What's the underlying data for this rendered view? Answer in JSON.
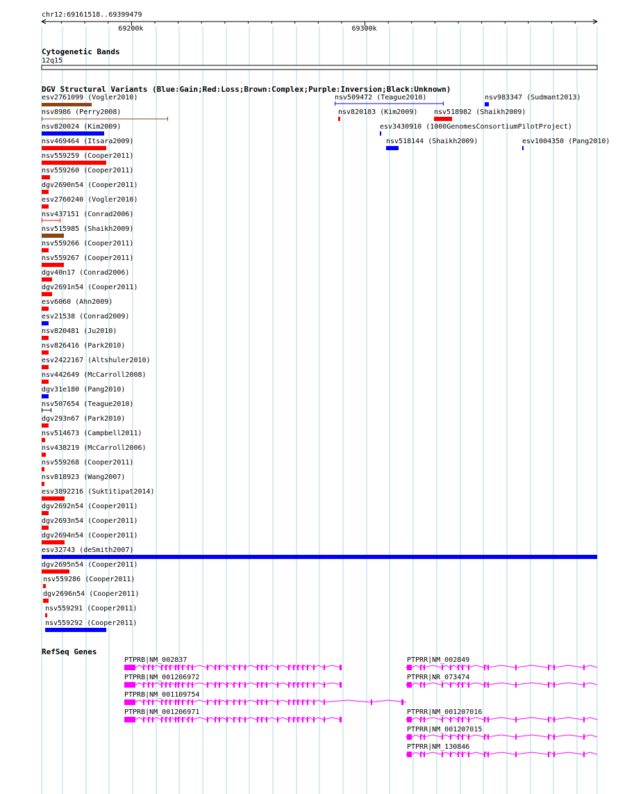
{
  "ruler": {
    "range_label": "chr12:69161518..69399479",
    "ticks": [
      {
        "label": "69200k",
        "pos": 69200000
      },
      {
        "label": "69300k",
        "pos": 69300000
      }
    ]
  },
  "cytoband": {
    "title": "Cytogenetic Bands",
    "band": "12q15"
  },
  "dgv": {
    "title": "DGV Structural Variants (Blue:Gain;Red:Loss;Brown:Complex;Purple:Inversion;Black:Unknown)",
    "variants": [
      {
        "label": "esv2761099 (Vogler2010)",
        "type": "Complex"
      },
      {
        "label": "nsv8986 (Perry2008)",
        "type": "Complex"
      },
      {
        "label": "nsv820024 (Kim2009)",
        "type": "Gain"
      },
      {
        "label": "nsv469464 (Itsara2009)",
        "type": "Loss"
      },
      {
        "label": "nsv559259 (Cooper2011)",
        "type": "Loss"
      },
      {
        "label": "nsv559260 (Cooper2011)",
        "type": "Loss"
      },
      {
        "label": "dgv2690n54 (Cooper2011)",
        "type": "Loss"
      },
      {
        "label": "esv2760240 (Vogler2010)",
        "type": "Loss"
      },
      {
        "label": "nsv437151 (Conrad2006)",
        "type": "Loss"
      },
      {
        "label": "nsv515985 (Shaikh2009)",
        "type": "Complex"
      },
      {
        "label": "nsv559266 (Cooper2011)",
        "type": "Loss"
      },
      {
        "label": "nsv559267 (Cooper2011)",
        "type": "Loss"
      },
      {
        "label": "dgv40n17 (Conrad2006)",
        "type": "Loss"
      },
      {
        "label": "dgv2691n54 (Cooper2011)",
        "type": "Loss"
      },
      {
        "label": "esv6060 (Ahn2009)",
        "type": "Loss"
      },
      {
        "label": "esv21538 (Conrad2009)",
        "type": "Gain"
      },
      {
        "label": "nsv820481 (Ju2010)",
        "type": "Loss"
      },
      {
        "label": "nsv826416 (Park2010)",
        "type": "Loss"
      },
      {
        "label": "esv2422167 (Altshuler2010)",
        "type": "Loss"
      },
      {
        "label": "nsv442649 (McCarroll2008)",
        "type": "Loss"
      },
      {
        "label": "dgv31e180 (Pang2010)",
        "type": "Gain"
      },
      {
        "label": "nsv507654 (Teague2010)",
        "type": "Unknown"
      },
      {
        "label": "dgv293n67 (Park2010)",
        "type": "Loss"
      },
      {
        "label": "nsv514673 (Campbell2011)",
        "type": "Loss"
      },
      {
        "label": "nsv438219 (McCarroll2006)",
        "type": "Loss"
      },
      {
        "label": "nsv559268 (Cooper2011)",
        "type": "Loss"
      },
      {
        "label": "nsv818923 (Wang2007)",
        "type": "Loss"
      },
      {
        "label": "esv3892216 (Suktitipat2014)",
        "type": "Loss"
      },
      {
        "label": "dgv2692n54 (Cooper2011)",
        "type": "Loss"
      },
      {
        "label": "dgv2693n54 (Cooper2011)",
        "type": "Loss"
      },
      {
        "label": "dgv2694n54 (Cooper2011)",
        "type": "Loss"
      },
      {
        "label": "esv32743 (deSmith2007)",
        "type": "Gain"
      },
      {
        "label": "dgv2695n54 (Cooper2011)",
        "type": "Loss"
      },
      {
        "label": "nsv559286 (Cooper2011)",
        "type": "Loss"
      },
      {
        "label": "dgv2696n54 (Cooper2011)",
        "type": "Loss"
      },
      {
        "label": "nsv559291 (Cooper2011)",
        "type": "Loss"
      },
      {
        "label": "nsv559292 (Cooper2011)",
        "type": "Gain"
      },
      {
        "label": "nsv509472 (Teague2010)",
        "type": "Gain"
      },
      {
        "label": "nsv983347 (Sudmant2013)",
        "type": "Gain"
      },
      {
        "label": "nsv820183 (Kim2009)",
        "type": "Loss"
      },
      {
        "label": "nsv518982 (Shaikh2009)",
        "type": "Loss"
      },
      {
        "label": "esv3430910 (1000GenomesConsortiumPilotProject)",
        "type": "Gain"
      },
      {
        "label": "nsv518144 (Shaikh2009)",
        "type": "Gain"
      },
      {
        "label": "esv1004350 (Pang2010)",
        "type": "Gain"
      }
    ]
  },
  "refseq": {
    "title": "RefSeq Genes",
    "genes": [
      {
        "label": "PTPRB|NM_002837"
      },
      {
        "label": "PTPRB|NM_001206972"
      },
      {
        "label": "PTPRB|NM_001109754"
      },
      {
        "label": "PTPRB|NM_001206971"
      },
      {
        "label": "PTPRR|NM_002849"
      },
      {
        "label": "PTPRR|NR_073474"
      },
      {
        "label": "PTPRR|NM_001207016"
      },
      {
        "label": "PTPRR|NM_001207015"
      },
      {
        "label": "PTPRR|NM_130846"
      }
    ]
  },
  "colors": {
    "Gain": "#0000ff",
    "Loss": "#ff0000",
    "Complex": "#8b4513",
    "Inversion": "#800080",
    "Unknown": "#000000",
    "gene": "#ff00ff",
    "grid": "#add8e6"
  }
}
